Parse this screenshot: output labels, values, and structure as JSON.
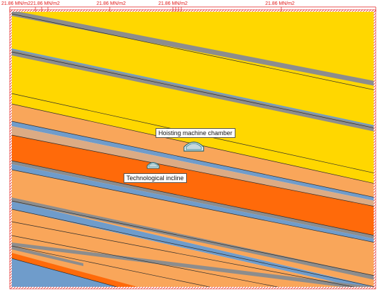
{
  "load": {
    "labels": [
      "21.86 MN/m2",
      "21.86 MN/m2",
      "21.86 MN/m2",
      "21.86 MN/m2"
    ],
    "color": "#e01818"
  },
  "openings": {
    "chamber": {
      "label": "Hoisting machine chamber"
    },
    "incline": {
      "label": "Technological incline"
    }
  },
  "colors": {
    "sandstone": "#ffd700",
    "sandy_shale": "#f9a65a",
    "shale": "#ff6a0a",
    "coal": "#6f9ccb",
    "claystone": "#dcab84",
    "thin_layer": "#8d8d8d",
    "grid_line": "#2b2b2b"
  }
}
